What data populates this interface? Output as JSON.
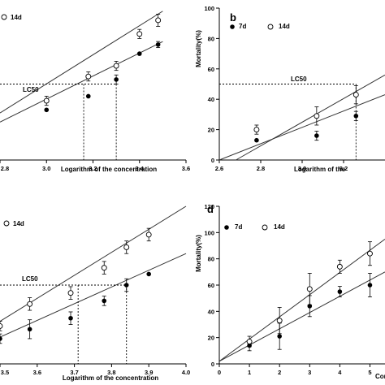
{
  "chart_data": [
    {
      "type": "scatter",
      "panel_letter": "",
      "xlabel": "Logarithm of the concentration",
      "ylabel": "",
      "xlim": [
        2.8,
        3.6
      ],
      "ylim": [
        0,
        100
      ],
      "xticks": [
        "2.8",
        "3.0",
        "3.2",
        "3.4",
        "3.6"
      ],
      "xticks_values": [
        2.8,
        3.0,
        3.2,
        3.4,
        3.6
      ],
      "yticks_values": [],
      "legend_series": [
        "14d"
      ],
      "annotation": "LC50",
      "lc50_y": 50,
      "lc50_x": [
        3.16,
        3.3
      ],
      "series": [
        {
          "name": "7d",
          "marker": "filled",
          "x": [
            3.0,
            3.18,
            3.3,
            3.4,
            3.48
          ],
          "y": [
            33,
            42,
            53,
            70,
            76
          ],
          "err": [
            0,
            0,
            3,
            0,
            2
          ]
        },
        {
          "name": "14d",
          "marker": "open",
          "x": [
            3.0,
            3.18,
            3.3,
            3.4,
            3.48
          ],
          "y": [
            39,
            55,
            62,
            83,
            92
          ],
          "err": [
            3,
            3,
            3,
            3,
            4
          ]
        }
      ],
      "fit_lines": [
        {
          "x": [
            2.8,
            3.5
          ],
          "y": [
            25,
            78
          ]
        },
        {
          "x": [
            2.8,
            3.5
          ],
          "y": [
            31,
            98
          ]
        }
      ]
    },
    {
      "type": "scatter",
      "panel_letter": "b",
      "xlabel": "Logarithm of the",
      "ylabel": "Mortality(%)",
      "xlim": [
        2.6,
        3.4
      ],
      "ylim": [
        0,
        100
      ],
      "xticks": [
        "2.6",
        "2.8",
        "3.0",
        "3.2"
      ],
      "xticks_values": [
        2.6,
        2.8,
        3.0,
        3.2
      ],
      "yticks": [
        "0",
        "20",
        "40",
        "60",
        "80",
        "100"
      ],
      "yticks_values": [
        0,
        20,
        40,
        60,
        80,
        100
      ],
      "legend_series": [
        "7d",
        "14d"
      ],
      "annotation": "LC50",
      "lc50_y": 50,
      "lc50_x": [
        3.26
      ],
      "series": [
        {
          "name": "7d",
          "marker": "filled",
          "x": [
            2.78,
            3.07,
            3.26
          ],
          "y": [
            13,
            16,
            29
          ],
          "err": [
            0,
            3,
            3
          ]
        },
        {
          "name": "14d",
          "marker": "open",
          "x": [
            2.78,
            3.07,
            3.26
          ],
          "y": [
            20,
            29,
            43
          ],
          "err": [
            3,
            6,
            6
          ]
        }
      ],
      "fit_lines": [
        {
          "x": [
            2.68,
            3.4
          ],
          "y": [
            0,
            56
          ]
        },
        {
          "x": [
            2.6,
            3.4
          ],
          "y": [
            0,
            43
          ]
        }
      ]
    },
    {
      "type": "scatter",
      "panel_letter": "",
      "xlabel": "Logarithm of the concentration",
      "ylabel": "",
      "xlim": [
        3.5,
        4.0
      ],
      "ylim": [
        0,
        100
      ],
      "xticks": [
        "3.5",
        "3.6",
        "3.7",
        "3.8",
        "3.9",
        "4.0"
      ],
      "xticks_values": [
        3.5,
        3.6,
        3.7,
        3.8,
        3.9,
        4.0
      ],
      "yticks_values": [],
      "legend_series": [
        "14d"
      ],
      "annotation": "LC50",
      "lc50_y": 50,
      "lc50_x": [
        3.71,
        3.84
      ],
      "series": [
        {
          "name": "7d",
          "marker": "filled",
          "x": [
            3.5,
            3.58,
            3.69,
            3.78,
            3.84,
            3.9
          ],
          "y": [
            16,
            22,
            29,
            40,
            50,
            57
          ],
          "err": [
            3,
            6,
            4,
            3,
            4,
            0
          ]
        },
        {
          "name": "14d",
          "marker": "open",
          "x": [
            3.5,
            3.58,
            3.69,
            3.78,
            3.84,
            3.9
          ],
          "y": [
            24,
            38,
            45,
            61,
            74,
            82
          ],
          "err": [
            3,
            4,
            4,
            4,
            4,
            4
          ]
        }
      ],
      "fit_lines": [
        {
          "x": [
            3.5,
            4.0
          ],
          "y": [
            17,
            70
          ]
        },
        {
          "x": [
            3.5,
            4.0
          ],
          "y": [
            27,
            100
          ]
        }
      ]
    },
    {
      "type": "scatter",
      "panel_letter": "d",
      "xlabel": "Con",
      "ylabel": "Mortality(%)",
      "xlim": [
        0,
        5.5
      ],
      "ylim": [
        0,
        120
      ],
      "xticks": [
        "0",
        "1",
        "2",
        "3",
        "4",
        "5"
      ],
      "xticks_values": [
        0,
        1,
        2,
        3,
        4,
        5
      ],
      "yticks": [
        "0",
        "20",
        "40",
        "60",
        "80",
        "100",
        "120"
      ],
      "yticks_values": [
        0,
        20,
        40,
        60,
        80,
        100,
        120
      ],
      "legend_series": [
        "7d",
        "14d"
      ],
      "annotation": "",
      "series": [
        {
          "name": "7d",
          "marker": "filled",
          "x": [
            1,
            2,
            3,
            4,
            5
          ],
          "y": [
            14,
            21,
            44,
            55,
            60
          ],
          "err": [
            4,
            10,
            8,
            4,
            9
          ]
        },
        {
          "name": "14d",
          "marker": "open",
          "x": [
            1,
            2,
            3,
            4,
            5
          ],
          "y": [
            17,
            33,
            57,
            74,
            84
          ],
          "err": [
            4,
            10,
            12,
            5,
            9
          ]
        }
      ],
      "fit_lines": [
        {
          "x": [
            0,
            5.5
          ],
          "y": [
            2,
            70
          ]
        },
        {
          "x": [
            0,
            5.5
          ],
          "y": [
            2,
            95
          ]
        }
      ]
    }
  ]
}
